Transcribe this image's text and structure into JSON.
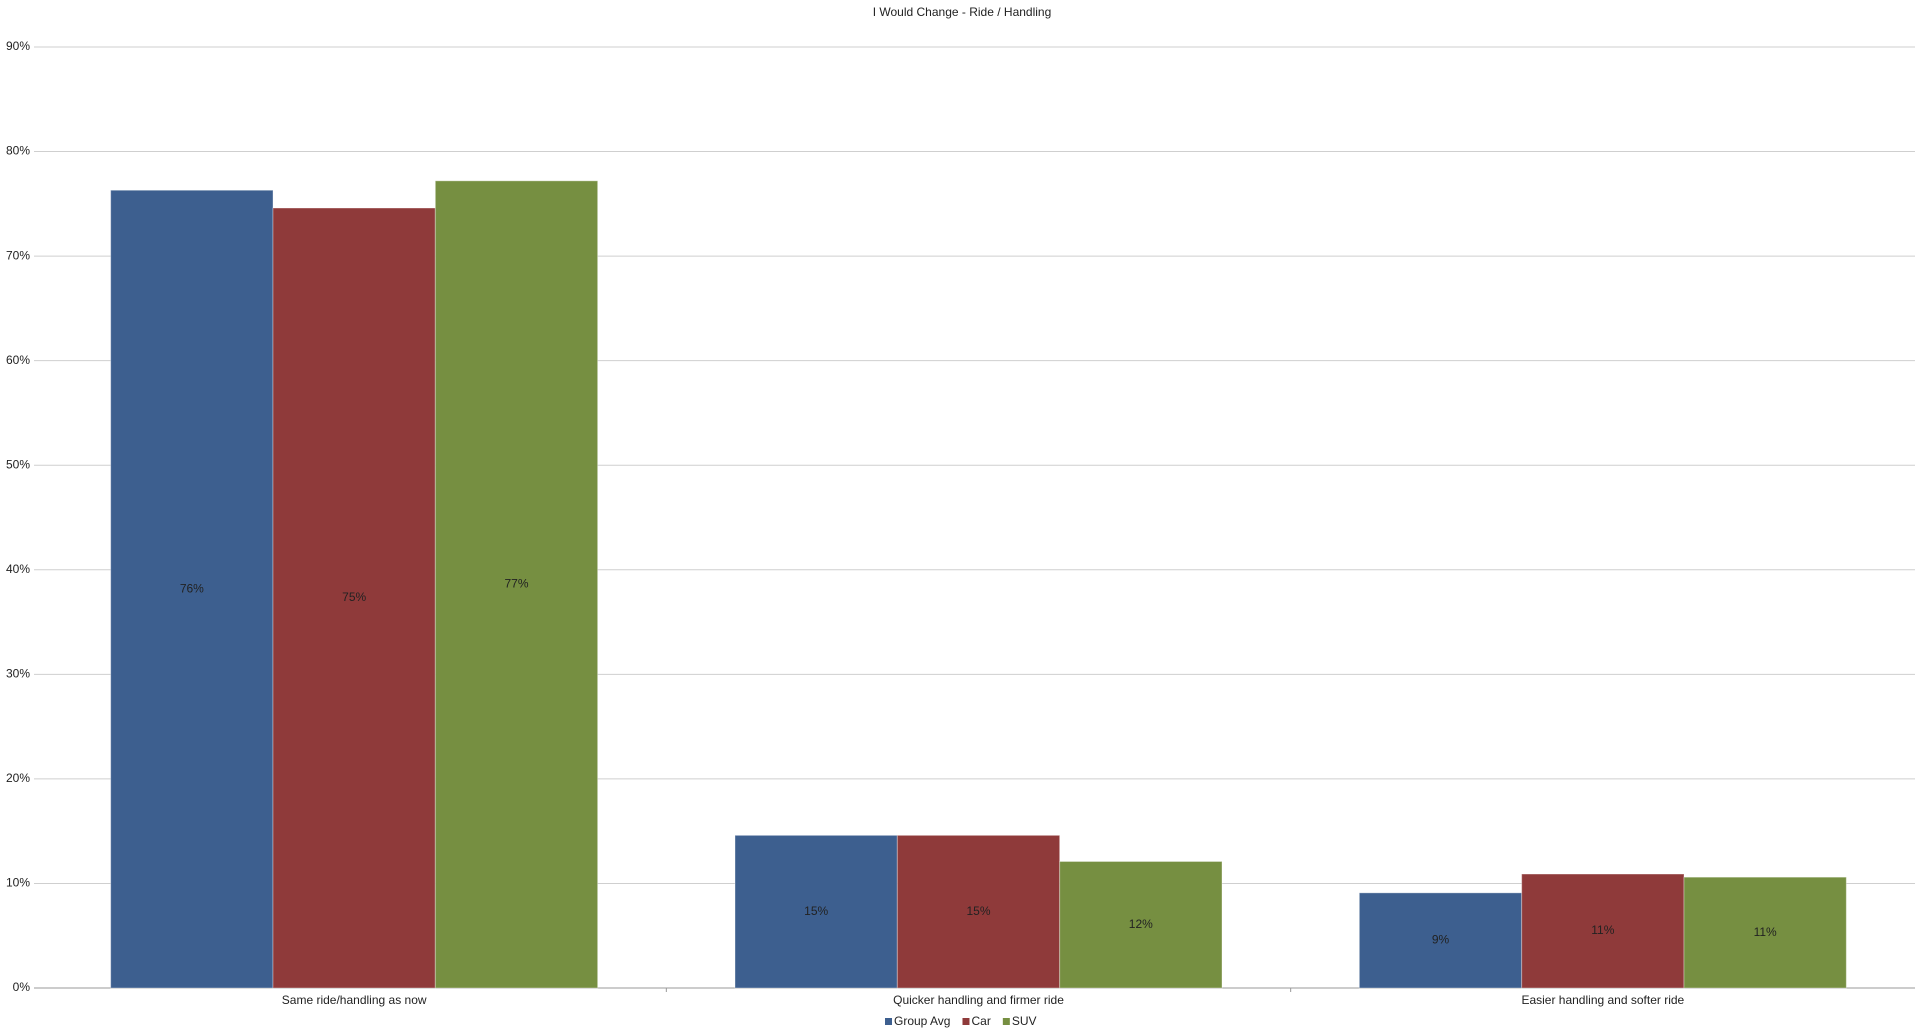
{
  "chart_data": {
    "type": "bar",
    "title": "I Would Change - Ride / Handling",
    "categories": [
      "Same ride/handling as now",
      "Quicker handling and firmer ride",
      "Easier handling and softer ride"
    ],
    "series": [
      {
        "name": "Group Avg",
        "color": "#3d5f8f",
        "values": [
          76.3,
          14.6,
          9.1
        ],
        "value_labels": [
          "76%",
          "15%",
          "9%"
        ]
      },
      {
        "name": "Car",
        "color": "#8f3a3a",
        "values": [
          74.6,
          14.6,
          10.9
        ],
        "value_labels": [
          "75%",
          "15%",
          "11%"
        ]
      },
      {
        "name": "SUV",
        "color": "#768f41",
        "values": [
          77.2,
          12.1,
          10.6
        ],
        "value_labels": [
          "77%",
          "12%",
          "11%"
        ]
      }
    ],
    "ylim": [
      0,
      90
    ],
    "yticks": [
      {
        "value": 0,
        "label": "0%"
      },
      {
        "value": 10,
        "label": "10%"
      },
      {
        "value": 20,
        "label": "20%"
      },
      {
        "value": 30,
        "label": "30%"
      },
      {
        "value": 40,
        "label": "40%"
      },
      {
        "value": 50,
        "label": "50%"
      },
      {
        "value": 60,
        "label": "60%"
      },
      {
        "value": 70,
        "label": "70%"
      },
      {
        "value": 80,
        "label": "80%"
      },
      {
        "value": 90,
        "label": "90%"
      }
    ],
    "grid": true,
    "legend": "bottom"
  }
}
